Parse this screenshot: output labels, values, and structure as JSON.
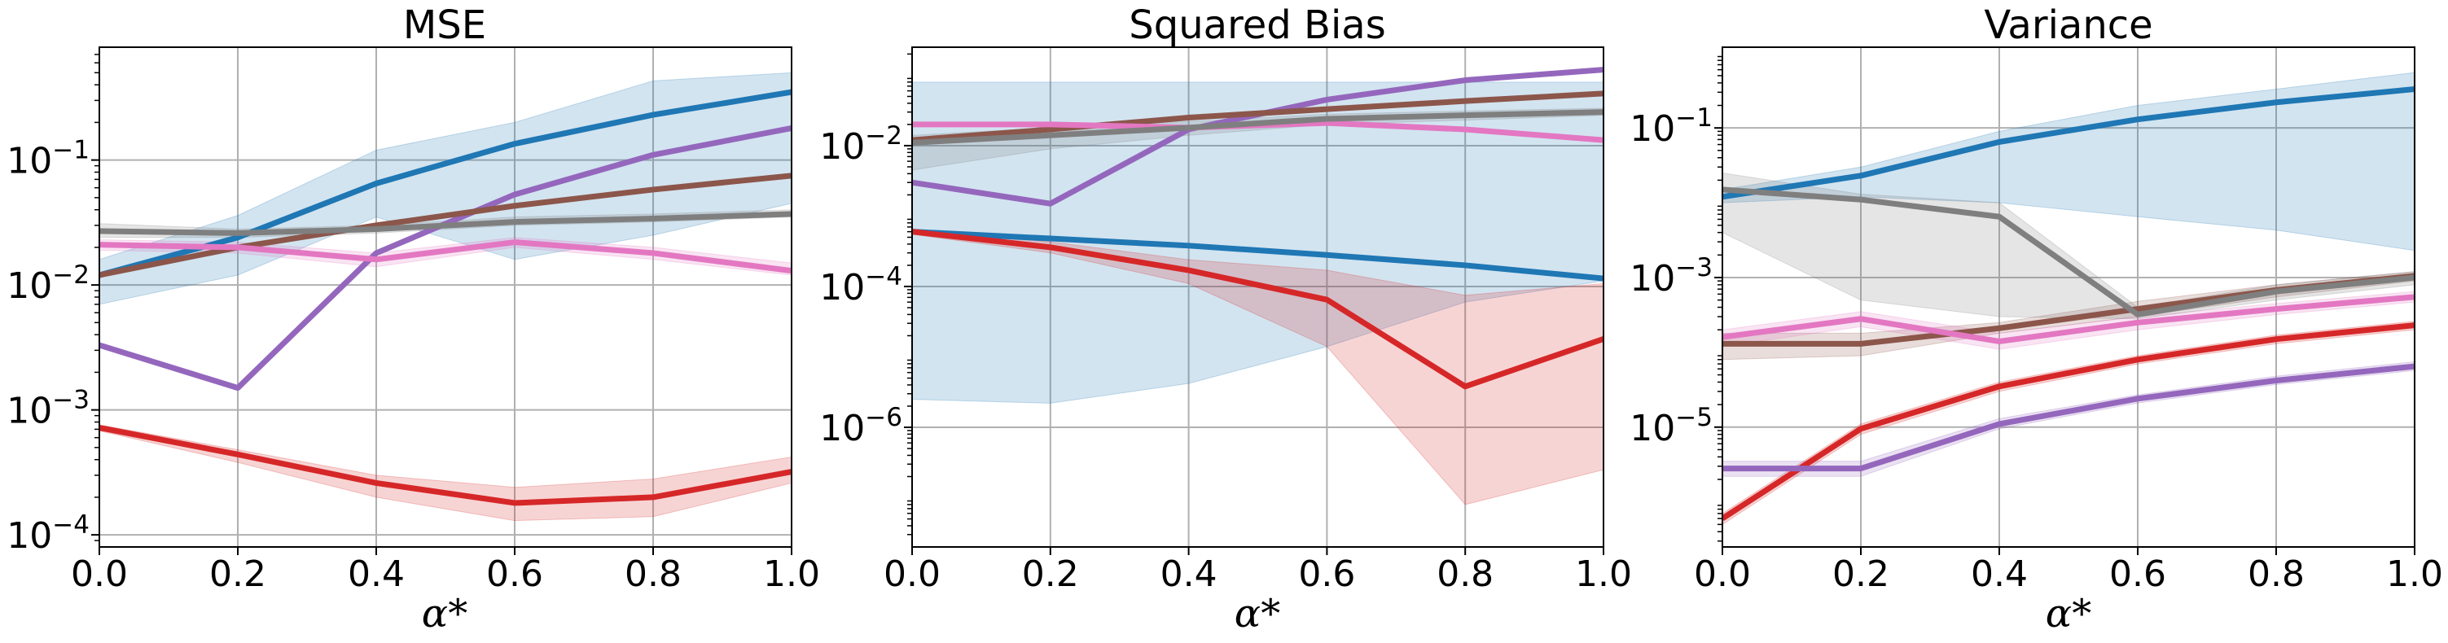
{
  "colors": {
    "blue": "#1f77b4",
    "red": "#d62728",
    "purple": "#9467bd",
    "brown": "#8c564b",
    "pink": "#e377c2",
    "gray": "#7f7f7f",
    "grid": "#b0b0b0"
  },
  "chart_data": [
    {
      "type": "line",
      "title": "MSE",
      "xlabel": "α*",
      "ylabel": "",
      "yscale": "log",
      "xlim": [
        0.0,
        1.0
      ],
      "ylim": [
        8e-05,
        0.8
      ],
      "grid": true,
      "x": [
        0.0,
        0.2,
        0.4,
        0.6,
        0.8,
        1.0
      ],
      "x_ticks": [
        {
          "v": 0.0,
          "label": "0.0"
        },
        {
          "v": 0.2,
          "label": "0.2"
        },
        {
          "v": 0.4,
          "label": "0.4"
        },
        {
          "v": 0.6,
          "label": "0.6"
        },
        {
          "v": 0.8,
          "label": "0.8"
        },
        {
          "v": 1.0,
          "label": "1.0"
        }
      ],
      "y_ticks": [
        {
          "exp": -4,
          "base": "10",
          "sup": "−4"
        },
        {
          "exp": -3,
          "base": "10",
          "sup": "−3"
        },
        {
          "exp": -2,
          "base": "10",
          "sup": "−2"
        },
        {
          "exp": -1,
          "base": "10",
          "sup": "−1"
        }
      ],
      "series": [
        {
          "color": "blue",
          "values": [
            0.012,
            0.024,
            0.065,
            0.135,
            0.23,
            0.35
          ],
          "band": [
            [
              0.007,
              0.016
            ],
            [
              0.012,
              0.036
            ],
            [
              0.035,
              0.12
            ],
            [
              0.016,
              0.2
            ],
            [
              0.025,
              0.43
            ],
            [
              0.045,
              0.5
            ]
          ]
        },
        {
          "color": "red",
          "values": [
            0.00072,
            0.00044,
            0.00026,
            0.00018,
            0.0002,
            0.00032
          ],
          "band": [
            [
              0.00068,
              0.00076
            ],
            [
              0.00038,
              0.00048
            ],
            [
              0.0002,
              0.0003
            ],
            [
              0.00013,
              0.00024
            ],
            [
              0.00014,
              0.00028
            ],
            [
              0.00026,
              0.00042
            ]
          ]
        },
        {
          "color": "purple",
          "values": [
            0.0033,
            0.0015,
            0.018,
            0.053,
            0.11,
            0.18
          ]
        },
        {
          "color": "brown",
          "values": [
            0.012,
            0.02,
            0.03,
            0.043,
            0.058,
            0.075
          ]
        },
        {
          "color": "pink",
          "values": [
            0.021,
            0.02,
            0.016,
            0.022,
            0.018,
            0.013
          ],
          "band": [
            [
              0.019,
              0.023
            ],
            [
              0.018,
              0.022
            ],
            [
              0.014,
              0.018
            ],
            [
              0.02,
              0.024
            ],
            [
              0.016,
              0.02
            ],
            [
              0.012,
              0.015
            ]
          ]
        },
        {
          "color": "gray",
          "values": [
            0.027,
            0.026,
            0.028,
            0.032,
            0.034,
            0.037
          ],
          "band": [
            [
              0.024,
              0.031
            ],
            [
              0.024,
              0.028
            ],
            [
              0.026,
              0.03
            ],
            [
              0.03,
              0.035
            ],
            [
              0.032,
              0.037
            ],
            [
              0.035,
              0.04
            ]
          ]
        }
      ]
    },
    {
      "type": "line",
      "title": "Squared Bias",
      "xlabel": "α*",
      "ylabel": "",
      "yscale": "log",
      "xlim": [
        0.0,
        1.0
      ],
      "ylim": [
        2e-08,
        0.25
      ],
      "grid": true,
      "x": [
        0.0,
        0.2,
        0.4,
        0.6,
        0.8,
        1.0
      ],
      "x_ticks": [
        {
          "v": 0.0,
          "label": "0.0"
        },
        {
          "v": 0.2,
          "label": "0.2"
        },
        {
          "v": 0.4,
          "label": "0.4"
        },
        {
          "v": 0.6,
          "label": "0.6"
        },
        {
          "v": 0.8,
          "label": "0.8"
        },
        {
          "v": 1.0,
          "label": "1.0"
        }
      ],
      "y_ticks": [
        {
          "exp": -6,
          "base": "10",
          "sup": "−6"
        },
        {
          "exp": -4,
          "base": "10",
          "sup": "−4"
        },
        {
          "exp": -2,
          "base": "10",
          "sup": "−2"
        }
      ],
      "series": [
        {
          "color": "blue",
          "values": [
            0.0006,
            0.00048,
            0.00038,
            0.00028,
            0.0002,
            0.00013
          ],
          "band": [
            [
              2.5e-06,
              0.08
            ],
            [
              2.2e-06,
              0.08
            ],
            [
              4.2e-06,
              0.08
            ],
            [
              1.4e-05,
              0.08
            ],
            [
              6e-05,
              0.08
            ],
            [
              0.00012,
              0.08
            ]
          ]
        },
        {
          "color": "red",
          "values": [
            0.0006,
            0.00036,
            0.00017,
            6.5e-05,
            3.8e-06,
            1.8e-05
          ],
          "band": [
            [
              0.00055,
              0.00065
            ],
            [
              0.0003,
              0.00043
            ],
            [
              0.00011,
              0.00024
            ],
            [
              1.4e-05,
              0.00017
            ],
            [
              8e-08,
              7.5e-05
            ],
            [
              2.5e-07,
              0.00011
            ]
          ]
        },
        {
          "color": "purple",
          "values": [
            0.003,
            0.0015,
            0.017,
            0.045,
            0.085,
            0.12
          ]
        },
        {
          "color": "brown",
          "values": [
            0.012,
            0.017,
            0.025,
            0.033,
            0.043,
            0.055
          ]
        },
        {
          "color": "pink",
          "values": [
            0.02,
            0.02,
            0.018,
            0.021,
            0.017,
            0.012
          ]
        },
        {
          "color": "gray",
          "values": [
            0.011,
            0.014,
            0.018,
            0.024,
            0.027,
            0.03
          ],
          "band": [
            [
              0.0045,
              0.014
            ],
            [
              0.009,
              0.018
            ],
            [
              0.014,
              0.022
            ],
            [
              0.02,
              0.028
            ],
            [
              0.023,
              0.031
            ],
            [
              0.027,
              0.034
            ]
          ]
        }
      ]
    },
    {
      "type": "line",
      "title": "Variance",
      "xlabel": "α*",
      "ylabel": "",
      "yscale": "log",
      "xlim": [
        0.0,
        1.0
      ],
      "ylim": [
        2.5e-07,
        1.2
      ],
      "grid": true,
      "x": [
        0.0,
        0.2,
        0.4,
        0.6,
        0.8,
        1.0
      ],
      "x_ticks": [
        {
          "v": 0.0,
          "label": "0.0"
        },
        {
          "v": 0.2,
          "label": "0.2"
        },
        {
          "v": 0.4,
          "label": "0.4"
        },
        {
          "v": 0.6,
          "label": "0.6"
        },
        {
          "v": 0.8,
          "label": "0.8"
        },
        {
          "v": 1.0,
          "label": "1.0"
        }
      ],
      "y_ticks": [
        {
          "exp": -5,
          "base": "10",
          "sup": "−5"
        },
        {
          "exp": -3,
          "base": "10",
          "sup": "−3"
        },
        {
          "exp": -1,
          "base": "10",
          "sup": "−1"
        }
      ],
      "series": [
        {
          "color": "blue",
          "values": [
            0.012,
            0.023,
            0.065,
            0.13,
            0.22,
            0.33
          ],
          "band": [
            [
              0.01,
              0.015
            ],
            [
              0.012,
              0.03
            ],
            [
              0.01,
              0.09
            ],
            [
              0.0065,
              0.2
            ],
            [
              0.0043,
              0.33
            ],
            [
              0.0023,
              0.55
            ]
          ]
        },
        {
          "color": "red",
          "values": [
            6e-07,
            9.5e-06,
            3.5e-05,
            8e-05,
            0.00015,
            0.00023
          ],
          "band": [
            [
              5e-07,
              7e-07
            ],
            [
              8e-06,
              1.1e-05
            ],
            [
              3e-05,
              4e-05
            ],
            [
              7e-05,
              9e-05
            ],
            [
              0.00013,
              0.00017
            ],
            [
              0.0002,
              0.00026
            ]
          ]
        },
        {
          "color": "purple",
          "values": [
            2.8e-06,
            2.8e-06,
            1.1e-05,
            2.4e-05,
            4.2e-05,
            6.5e-05
          ],
          "band": [
            [
              2.2e-06,
              3.5e-06
            ],
            [
              2.2e-06,
              3.5e-06
            ],
            [
              9.5e-06,
              1.3e-05
            ],
            [
              2.1e-05,
              2.7e-05
            ],
            [
              3.7e-05,
              4.8e-05
            ],
            [
              5.7e-05,
              7.5e-05
            ]
          ]
        },
        {
          "color": "brown",
          "values": [
            0.00013,
            0.00013,
            0.00021,
            0.00038,
            0.00068,
            0.00105
          ],
          "band": [
            [
              8e-05,
              0.00018
            ],
            [
              9e-05,
              0.00018
            ],
            [
              0.00018,
              0.00025
            ],
            [
              0.0003,
              0.00048
            ],
            [
              0.00055,
              0.0008
            ],
            [
              0.0009,
              0.0012
            ]
          ]
        },
        {
          "color": "pink",
          "values": [
            0.00016,
            0.00028,
            0.00014,
            0.00025,
            0.00038,
            0.00055
          ],
          "band": [
            [
              0.00012,
              0.0002
            ],
            [
              0.00022,
              0.00035
            ],
            [
              0.00011,
              0.00018
            ],
            [
              0.0002,
              0.0003
            ],
            [
              0.00032,
              0.00045
            ],
            [
              0.00047,
              0.00065
            ]
          ]
        },
        {
          "color": "gray",
          "values": [
            0.015,
            0.011,
            0.0065,
            0.00032,
            0.00065,
            0.001
          ],
          "band": [
            [
              0.004,
              0.025
            ],
            [
              0.0005,
              0.013
            ],
            [
              0.0003,
              0.01
            ],
            [
              0.00028,
              0.0004
            ],
            [
              0.0005,
              0.0008
            ],
            [
              0.0008,
              0.0012
            ]
          ]
        }
      ]
    }
  ]
}
